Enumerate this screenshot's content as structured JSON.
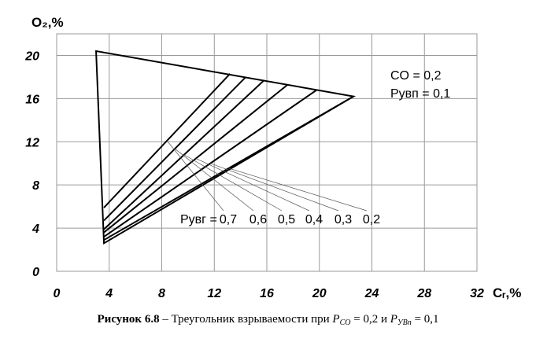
{
  "chart_data": {
    "type": "line",
    "ylabel": "O₂,%",
    "xlabel": "Cᵣ,%",
    "xlim": [
      0,
      32
    ],
    "ylim": [
      0,
      22
    ],
    "x_ticks": [
      "0",
      "4",
      "8",
      "12",
      "16",
      "20",
      "24",
      "28",
      "32"
    ],
    "y_ticks": [
      "0",
      "4",
      "8",
      "12",
      "16",
      "20"
    ],
    "grid": true,
    "annotations": {
      "co": "CO  = 0,2",
      "pyvp": "Pуʙп = 0,1",
      "pyvr_label": "Pуʙг =",
      "pyvr_values": [
        "0,7",
        "0,6",
        "0,5",
        "0,4",
        "0,3",
        "0,2"
      ]
    },
    "triangle": [
      {
        "x": 3.0,
        "y": 20.4
      },
      {
        "x": 22.6,
        "y": 16.2
      },
      {
        "x": 3.6,
        "y": 2.6
      }
    ],
    "lines": [
      {
        "from": {
          "x": 3.6,
          "y": 5.9
        },
        "to": {
          "x": 13.2,
          "y": 18.3
        }
      },
      {
        "from": {
          "x": 3.6,
          "y": 4.7
        },
        "to": {
          "x": 14.4,
          "y": 18.0
        }
      },
      {
        "from": {
          "x": 3.6,
          "y": 3.9
        },
        "to": {
          "x": 15.8,
          "y": 17.7
        }
      },
      {
        "from": {
          "x": 3.6,
          "y": 3.6
        },
        "to": {
          "x": 17.6,
          "y": 17.3
        }
      },
      {
        "from": {
          "x": 3.6,
          "y": 3.2
        },
        "to": {
          "x": 19.8,
          "y": 16.8
        }
      },
      {
        "from": {
          "x": 3.6,
          "y": 2.9
        },
        "to": {
          "x": 22.6,
          "y": 16.2
        }
      }
    ]
  },
  "caption": {
    "bold": "Рисунок 6.8",
    "text": " – Треугольник взрываемости при ",
    "p1_main": "P",
    "p1_sub": "CO",
    "p1_val": " = 0,2 и ",
    "p2_main": "P",
    "p2_sub": "УВп",
    "p2_val": " = 0,1"
  }
}
